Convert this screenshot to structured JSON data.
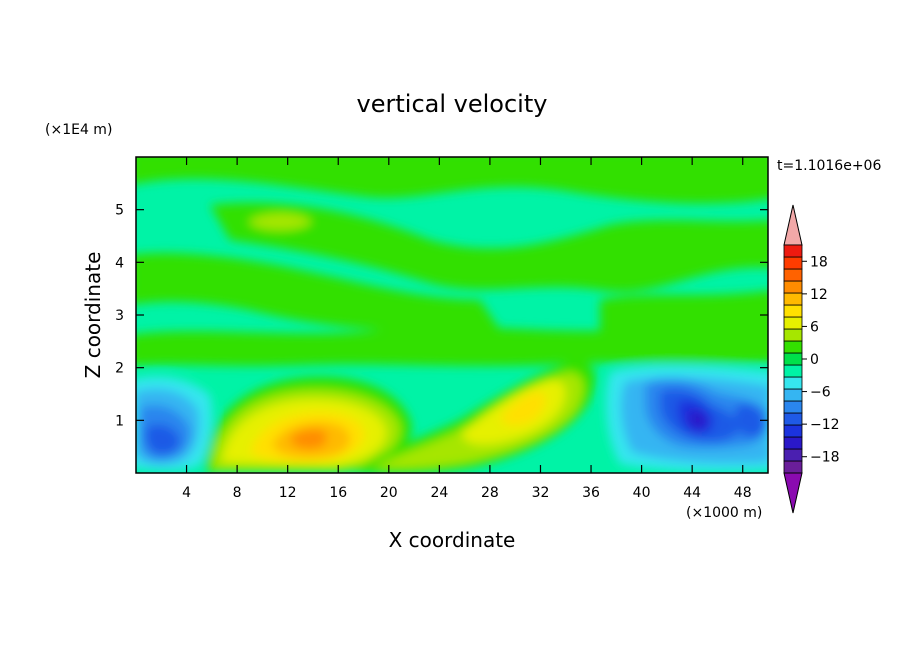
{
  "chart_data": {
    "type": "heatmap",
    "title": "vertical velocity",
    "xlabel": "X coordinate",
    "ylabel": "Z coordinate",
    "x_unit": "(×1000 m)",
    "y_unit": "(×1E4 m)",
    "time_label": "t=1.1016e+06",
    "xlim": [
      0,
      50
    ],
    "ylim": [
      0,
      6
    ],
    "x_ticks": [
      4,
      8,
      12,
      16,
      20,
      24,
      28,
      32,
      36,
      40,
      44,
      48
    ],
    "y_ticks": [
      1,
      2,
      3,
      4,
      5
    ],
    "colorbar": {
      "min": -21,
      "max": 21,
      "step": 3,
      "tick_values": [
        -18,
        -12,
        -6,
        0,
        6,
        12,
        18
      ],
      "tick_labels": [
        "−18",
        "−12",
        "−6",
        "0",
        "6",
        "12",
        "18"
      ],
      "extend": "both",
      "colors": [
        "#6a1e9a",
        "#4a1fb0",
        "#2a18c8",
        "#1b33de",
        "#1f5ae6",
        "#2a86ee",
        "#35b5f2",
        "#36e6ee",
        "#00f3a6",
        "#00e04a",
        "#33e000",
        "#a6e600",
        "#e6f000",
        "#ffe000",
        "#ffba00",
        "#ff8c00",
        "#ff6200",
        "#ff3c00",
        "#ee1a10"
      ],
      "under_color": "#8a0ab0",
      "over_color": "#f2a8a8"
    },
    "features": [
      {
        "kind": "updraft",
        "x": 13.5,
        "z": 0.7,
        "value": 15
      },
      {
        "kind": "updraft",
        "x": 30.5,
        "z": 1.3,
        "value": 8
      },
      {
        "kind": "downdraft",
        "x": 2.5,
        "z": 0.7,
        "value": -11
      },
      {
        "kind": "downdraft",
        "x": 44,
        "z": 1.0,
        "value": -15
      },
      {
        "kind": "downdraft",
        "x": 48,
        "z": 1.0,
        "value": -8
      },
      {
        "kind": "weak-updraft",
        "x": 12,
        "z": 4.8,
        "value": 3
      }
    ]
  }
}
